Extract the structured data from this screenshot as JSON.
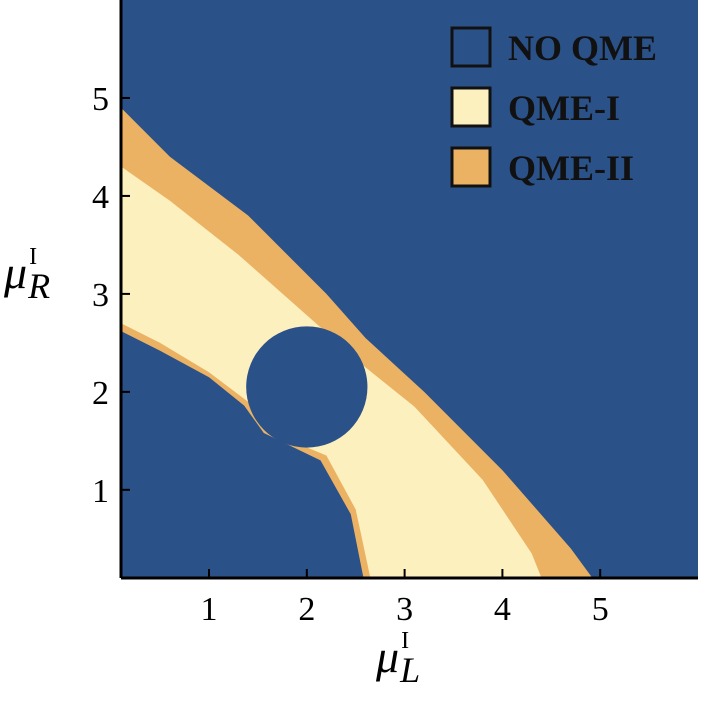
{
  "chart_data": {
    "type": "region_plot",
    "xlabel": {
      "base": "μ",
      "sup": "I",
      "sub": "L"
    },
    "ylabel": {
      "base": "μ",
      "sup": "I",
      "sub": "R"
    },
    "xlim": [
      0.1,
      6.0
    ],
    "ylim": [
      0.1,
      6.0
    ],
    "xticks": [
      1,
      2,
      3,
      4,
      5
    ],
    "yticks": [
      1,
      2,
      3,
      4,
      5
    ],
    "legend_position": "top-right",
    "regions": [
      {
        "name": "NO QME",
        "color": "#2b5189"
      },
      {
        "name": "QME-I",
        "color": "#fdf0bf"
      },
      {
        "name": "QME-II",
        "color": "#ebb263"
      }
    ],
    "boundaries": {
      "outer_band_upper": [
        [
          0.1,
          4.9
        ],
        [
          0.6,
          4.4
        ],
        [
          1.4,
          3.8
        ],
        [
          2.2,
          3.0
        ],
        [
          2.6,
          2.55
        ],
        [
          3.2,
          2.0
        ],
        [
          4.0,
          1.2
        ],
        [
          4.7,
          0.4
        ],
        [
          4.92,
          0.1
        ]
      ],
      "inner_band_upper": [
        [
          0.1,
          4.3
        ],
        [
          0.6,
          3.95
        ],
        [
          1.3,
          3.4
        ],
        [
          2.15,
          2.65
        ],
        [
          2.6,
          2.25
        ],
        [
          3.1,
          1.85
        ],
        [
          3.8,
          1.1
        ],
        [
          4.3,
          0.35
        ],
        [
          4.4,
          0.1
        ]
      ],
      "inner_band_lower": [
        [
          0.1,
          2.7
        ],
        [
          0.5,
          2.5
        ],
        [
          1.0,
          2.2
        ],
        [
          1.4,
          1.9
        ],
        [
          1.6,
          1.6
        ],
        [
          2.2,
          1.35
        ],
        [
          2.5,
          0.8
        ],
        [
          2.65,
          0.1
        ]
      ],
      "outer_band_lower": [
        [
          0.1,
          2.62
        ],
        [
          0.5,
          2.42
        ],
        [
          1.0,
          2.15
        ],
        [
          1.36,
          1.86
        ],
        [
          1.56,
          1.58
        ],
        [
          2.14,
          1.3
        ],
        [
          2.45,
          0.75
        ],
        [
          2.58,
          0.1
        ]
      ],
      "hole_center": [
        2.0,
        2.05
      ],
      "hole_radius": 0.62
    }
  }
}
